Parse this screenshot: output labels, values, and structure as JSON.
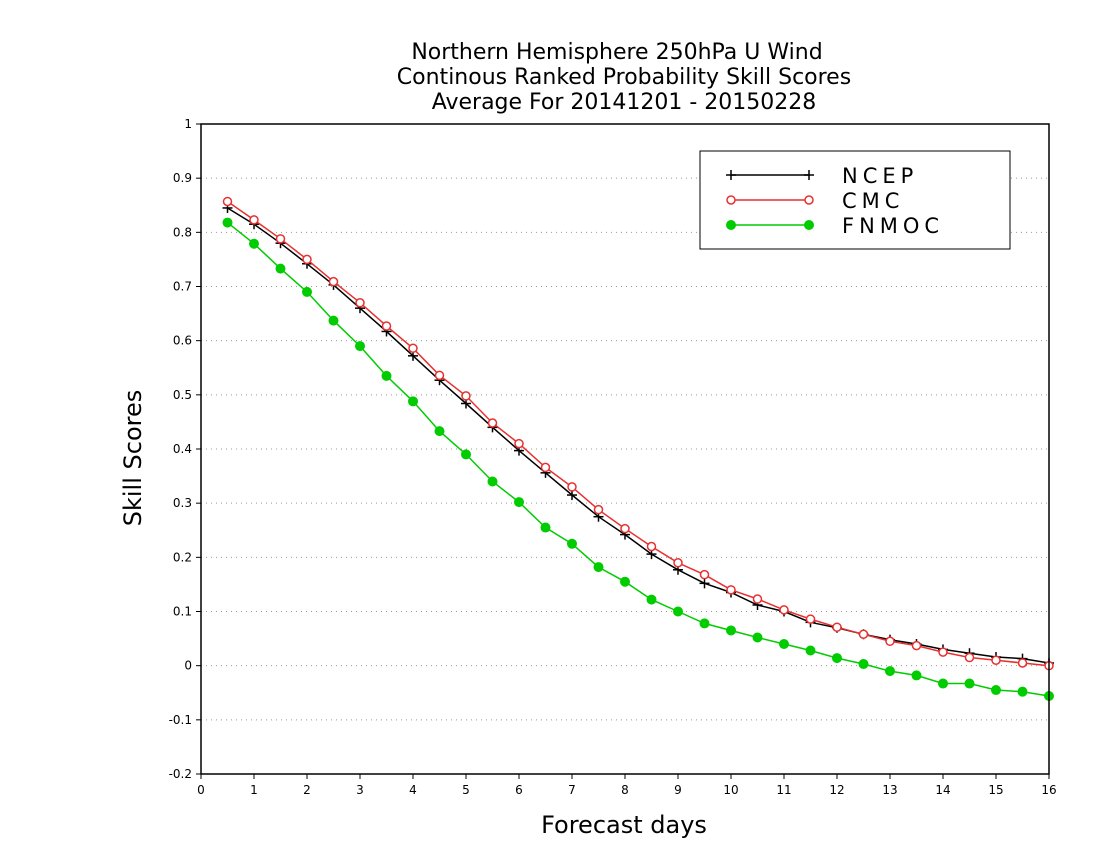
{
  "chart_data": {
    "type": "line",
    "title": [
      "Northern Hemisphere 250hPa U Wind",
      "Continous Ranked Probability Skill Scores",
      "Average For 20141201 - 20150228"
    ],
    "xlabel": "Forecast days",
    "ylabel": "Skill Scores",
    "xlim": [
      0,
      16
    ],
    "ylim": [
      -0.2,
      1
    ],
    "xticks": [
      0,
      1,
      2,
      3,
      4,
      5,
      6,
      7,
      8,
      9,
      10,
      11,
      12,
      13,
      14,
      15,
      16
    ],
    "yticks": [
      -0.2,
      -0.1,
      0,
      0.1,
      0.2,
      0.3,
      0.4,
      0.5,
      0.6,
      0.7,
      0.8,
      0.9,
      1
    ],
    "ytick_labels": [
      "-0.2",
      "-0.1",
      "0",
      "0.1",
      "0.2",
      "0.3",
      "0.4",
      "0.5",
      "0.6",
      "0.7",
      "0.8",
      "0.9",
      "1"
    ],
    "grid": "horizontal dotted",
    "legend_position": "top-right",
    "x": [
      0.5,
      1,
      1.5,
      2,
      2.5,
      3,
      3.5,
      4,
      4.5,
      5,
      5.5,
      6,
      6.5,
      7,
      7.5,
      8,
      8.5,
      9,
      9.5,
      10,
      10.5,
      11,
      11.5,
      12,
      12.5,
      13,
      13.5,
      14,
      14.5,
      15,
      15.5,
      16
    ],
    "series": [
      {
        "name": "NCEP",
        "color": "#000000",
        "marker": "plus",
        "values": [
          0.845,
          0.815,
          0.78,
          0.742,
          0.703,
          0.66,
          0.617,
          0.572,
          0.527,
          0.484,
          0.44,
          0.397,
          0.356,
          0.315,
          0.275,
          0.242,
          0.206,
          0.177,
          0.152,
          0.135,
          0.112,
          0.1,
          0.08,
          0.07,
          0.058,
          0.048,
          0.04,
          0.03,
          0.023,
          0.016,
          0.013,
          0.005
        ]
      },
      {
        "name": "CMC",
        "color": "#e83030",
        "marker": "open-circle",
        "values": [
          0.857,
          0.823,
          0.788,
          0.75,
          0.709,
          0.67,
          0.627,
          0.586,
          0.536,
          0.498,
          0.448,
          0.41,
          0.366,
          0.33,
          0.288,
          0.253,
          0.22,
          0.19,
          0.168,
          0.14,
          0.123,
          0.103,
          0.086,
          0.071,
          0.058,
          0.045,
          0.037,
          0.025,
          0.015,
          0.01,
          0.005,
          0.0
        ]
      },
      {
        "name": "FNMOC",
        "color": "#00cc00",
        "marker": "filled-circle",
        "values": [
          0.818,
          0.779,
          0.733,
          0.69,
          0.637,
          0.59,
          0.535,
          0.488,
          0.433,
          0.39,
          0.34,
          0.302,
          0.255,
          0.225,
          0.182,
          0.155,
          0.122,
          0.1,
          0.078,
          0.065,
          0.052,
          0.04,
          0.028,
          0.014,
          0.003,
          -0.01,
          -0.018,
          -0.033,
          -0.033,
          -0.045,
          -0.048,
          -0.056
        ]
      }
    ]
  }
}
